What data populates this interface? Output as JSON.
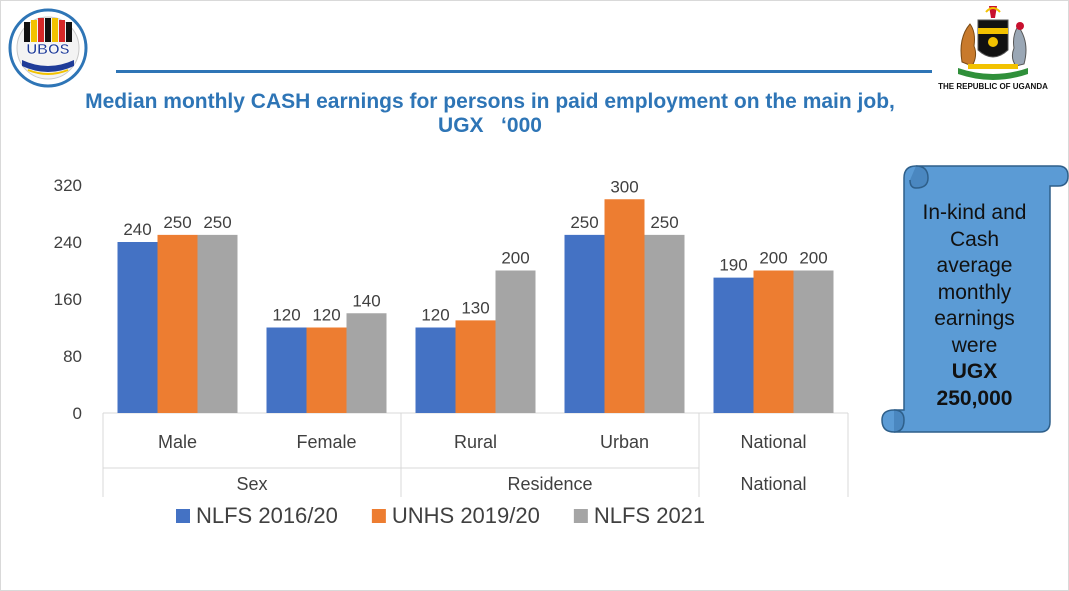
{
  "logo": {
    "name": "UBOS",
    "text": "UBOS"
  },
  "emblem": {
    "caption": "THE REPUBLIC OF UGANDA"
  },
  "title": {
    "line1": "Median monthly CASH earnings for persons in paid employment on the main job,",
    "line2": "UGX   ‘000"
  },
  "callout": {
    "lines": [
      "In-kind and",
      "Cash",
      "average",
      "monthly",
      "earnings",
      "were"
    ],
    "bold_lines": [
      "UGX",
      "250,000"
    ]
  },
  "chart_data": {
    "type": "bar",
    "title": "Median monthly CASH earnings for persons in paid employment on the main job, UGX ‘000",
    "categories": [
      "Male",
      "Female",
      "Rural",
      "Urban",
      "National"
    ],
    "category_groups": [
      {
        "label": "Sex",
        "members": [
          "Male",
          "Female"
        ]
      },
      {
        "label": "Residence",
        "members": [
          "Rural",
          "Urban"
        ]
      },
      {
        "label": "National",
        "members": []
      }
    ],
    "series": [
      {
        "name": "NLFS 2016/20",
        "values": [
          240,
          120,
          120,
          250,
          190
        ],
        "color": "#4472c4"
      },
      {
        "name": "UNHS 2019/20",
        "values": [
          250,
          120,
          130,
          300,
          200
        ],
        "color": "#ed7d31"
      },
      {
        "name": "NLFS 2021",
        "values": [
          250,
          140,
          200,
          250,
          200
        ],
        "color": "#a5a5a5"
      }
    ],
    "yticks": [
      0,
      80,
      160,
      240,
      320
    ],
    "ylim": [
      0,
      320
    ],
    "xlabel": "",
    "ylabel": "",
    "legend_position": "bottom",
    "grid": false
  }
}
